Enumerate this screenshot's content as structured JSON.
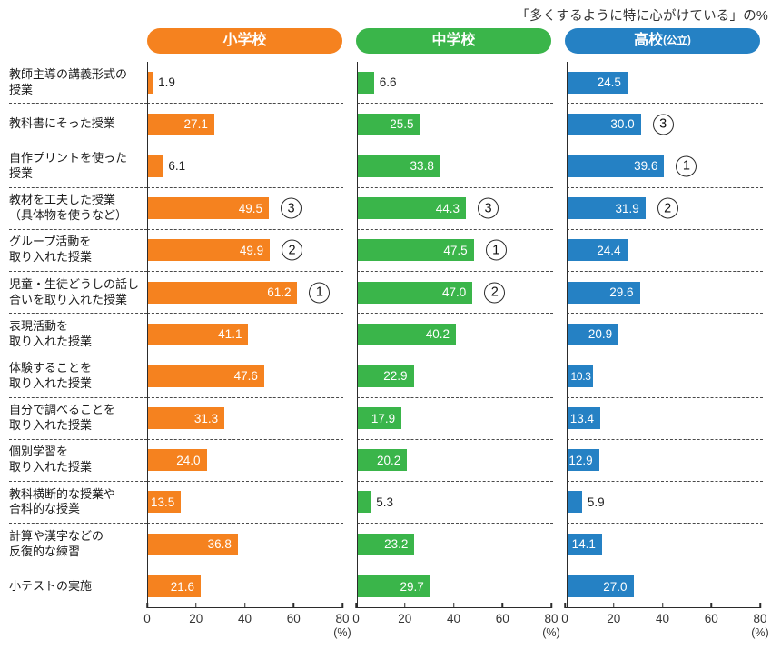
{
  "title": "「多くするように特に心がけている」の%",
  "legend": [
    {
      "label": "小学校",
      "suffix": "",
      "color": "#f5821f"
    },
    {
      "label": "中学校",
      "suffix": "",
      "color": "#3ab54a"
    },
    {
      "label": "高校",
      "suffix": "(公立)",
      "color": "#2581c4"
    }
  ],
  "axis": {
    "ticks": [
      "0",
      "20",
      "40",
      "60",
      "80"
    ],
    "unit_label": "(%)",
    "min": 0,
    "max": 80
  },
  "chart_data": {
    "type": "bar",
    "orientation": "horizontal",
    "title": "「多くするように特に心がけている」の%",
    "xlabel": "(%)",
    "xlim": [
      0,
      80
    ],
    "tick_interval": 20,
    "grid": false,
    "legend_position": "top",
    "categories": [
      "教師主導の講義形式の\n授業",
      "教科書にそった授業",
      "自作プリントを使った\n授業",
      "教材を工夫した授業\n（具体物を使うなど）",
      "グループ活動を\n取り入れた授業",
      "児童・生徒どうしの話し\n合いを取り入れた授業",
      "表現活動を\n取り入れた授業",
      "体験することを\n取り入れた授業",
      "自分で調べることを\n取り入れた授業",
      "個別学習を\n取り入れた授業",
      "教科横断的な授業や\n合科的な授業",
      "計算や漢字などの\n反復的な練習",
      "小テストの実施"
    ],
    "series": [
      {
        "name": "小学校",
        "color": "#f5821f",
        "values": [
          1.9,
          27.1,
          6.1,
          49.5,
          49.9,
          61.2,
          41.1,
          47.6,
          31.3,
          24.0,
          13.5,
          36.8,
          21.6
        ],
        "ranks": [
          null,
          null,
          null,
          3,
          2,
          1,
          null,
          null,
          null,
          null,
          null,
          null,
          null
        ]
      },
      {
        "name": "中学校",
        "color": "#3ab54a",
        "values": [
          6.6,
          25.5,
          33.8,
          44.3,
          47.5,
          47.0,
          40.2,
          22.9,
          17.9,
          20.2,
          5.3,
          23.2,
          29.7
        ],
        "ranks": [
          null,
          null,
          null,
          3,
          1,
          2,
          null,
          null,
          null,
          null,
          null,
          null,
          null
        ]
      },
      {
        "name": "高校(公立)",
        "color": "#2581c4",
        "values": [
          24.5,
          30.0,
          39.6,
          31.9,
          24.4,
          29.6,
          20.9,
          10.3,
          13.4,
          12.9,
          5.9,
          14.1,
          27.0
        ],
        "ranks": [
          null,
          3,
          1,
          2,
          null,
          null,
          null,
          null,
          null,
          null,
          null,
          null,
          null
        ]
      }
    ]
  }
}
